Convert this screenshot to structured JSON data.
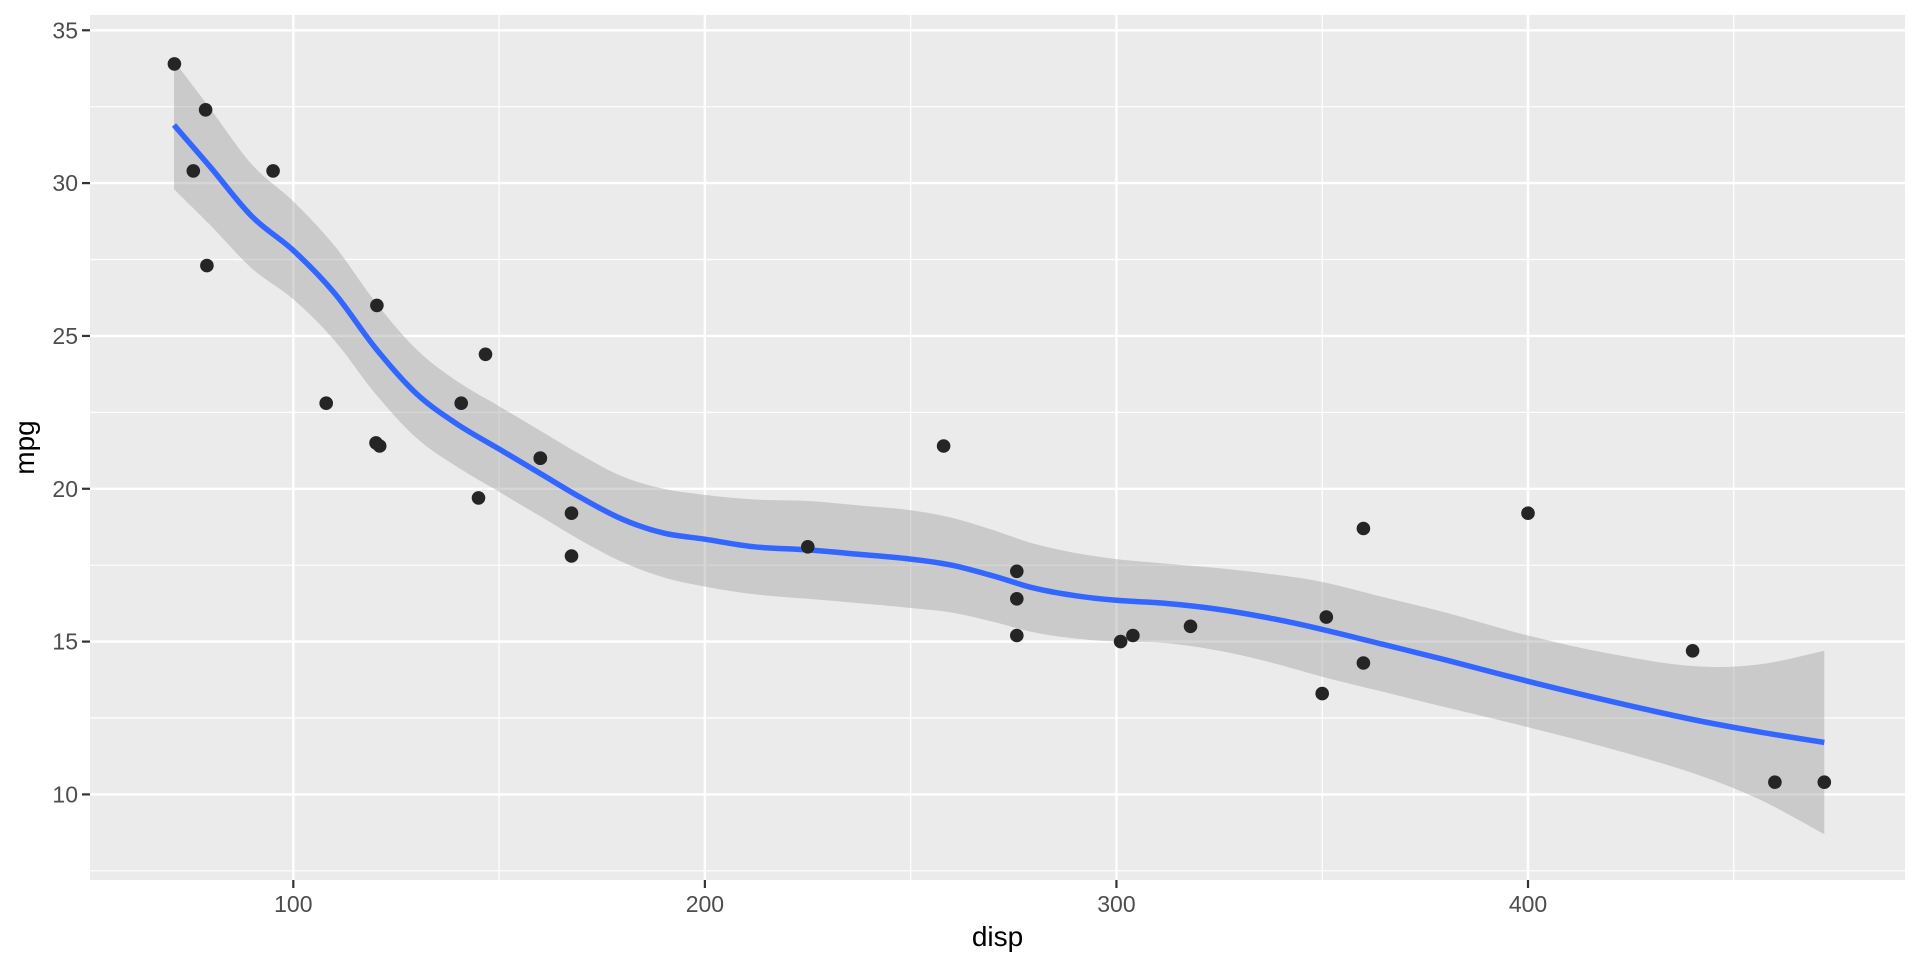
{
  "chart_data": {
    "type": "scatter",
    "title": "",
    "xlabel": "disp",
    "ylabel": "mpg",
    "x_ticks": [
      100,
      200,
      300,
      400
    ],
    "y_ticks": [
      10,
      15,
      20,
      25,
      30,
      35
    ],
    "x_minor_ticks": [
      150,
      250,
      350,
      450
    ],
    "y_minor_ticks": [
      7.5,
      12.5,
      17.5,
      22.5,
      27.5,
      32.5
    ],
    "xlim": [
      50.6,
      491.6
    ],
    "ylim": [
      7.2,
      35.5
    ],
    "grid": true,
    "legend": false,
    "points": [
      [
        160,
        21.0
      ],
      [
        160,
        21.0
      ],
      [
        108,
        22.8
      ],
      [
        258,
        21.4
      ],
      [
        360,
        18.7
      ],
      [
        225,
        18.1
      ],
      [
        360,
        14.3
      ],
      [
        146.7,
        24.4
      ],
      [
        140.8,
        22.8
      ],
      [
        167.6,
        19.2
      ],
      [
        167.6,
        17.8
      ],
      [
        275.8,
        16.4
      ],
      [
        275.8,
        17.3
      ],
      [
        275.8,
        15.2
      ],
      [
        472,
        10.4
      ],
      [
        460,
        10.4
      ],
      [
        440,
        14.7
      ],
      [
        78.7,
        32.4
      ],
      [
        75.7,
        30.4
      ],
      [
        71.1,
        33.9
      ],
      [
        120.1,
        21.5
      ],
      [
        318,
        15.5
      ],
      [
        304,
        15.2
      ],
      [
        350,
        13.3
      ],
      [
        400,
        19.2
      ],
      [
        79,
        27.3
      ],
      [
        120.3,
        26.0
      ],
      [
        95.1,
        30.4
      ],
      [
        351,
        15.8
      ],
      [
        145,
        19.7
      ],
      [
        301,
        15.0
      ],
      [
        121,
        21.4
      ]
    ],
    "smooth_line": [
      [
        71,
        31.9
      ],
      [
        80,
        30.5
      ],
      [
        90,
        28.9
      ],
      [
        100,
        27.8
      ],
      [
        110,
        26.4
      ],
      [
        120,
        24.6
      ],
      [
        130,
        23.1
      ],
      [
        140,
        22.1
      ],
      [
        150,
        21.3
      ],
      [
        160,
        20.5
      ],
      [
        170,
        19.7
      ],
      [
        180,
        19.0
      ],
      [
        190,
        18.55
      ],
      [
        200,
        18.35
      ],
      [
        212,
        18.1
      ],
      [
        225,
        18.0
      ],
      [
        238,
        17.85
      ],
      [
        250,
        17.7
      ],
      [
        260,
        17.5
      ],
      [
        270,
        17.15
      ],
      [
        280,
        16.75
      ],
      [
        290,
        16.5
      ],
      [
        300,
        16.35
      ],
      [
        312,
        16.25
      ],
      [
        325,
        16.05
      ],
      [
        338,
        15.75
      ],
      [
        350,
        15.4
      ],
      [
        365,
        14.9
      ],
      [
        380,
        14.4
      ],
      [
        400,
        13.7
      ],
      [
        420,
        13.05
      ],
      [
        440,
        12.45
      ],
      [
        456,
        12.05
      ],
      [
        472,
        11.7
      ]
    ],
    "confidence_band": [
      [
        71,
        29.8,
        34.0
      ],
      [
        80,
        28.6,
        32.4
      ],
      [
        90,
        27.2,
        30.6
      ],
      [
        100,
        26.2,
        29.4
      ],
      [
        110,
        24.85,
        27.95
      ],
      [
        120,
        23.1,
        26.1
      ],
      [
        130,
        21.65,
        24.55
      ],
      [
        140,
        20.7,
        23.5
      ],
      [
        150,
        19.9,
        22.7
      ],
      [
        160,
        19.1,
        21.9
      ],
      [
        170,
        18.3,
        21.1
      ],
      [
        180,
        17.6,
        20.4
      ],
      [
        190,
        17.1,
        20.0
      ],
      [
        200,
        16.8,
        19.8
      ],
      [
        212,
        16.55,
        19.65
      ],
      [
        225,
        16.4,
        19.6
      ],
      [
        238,
        16.25,
        19.45
      ],
      [
        250,
        16.1,
        19.3
      ],
      [
        260,
        15.95,
        19.05
      ],
      [
        270,
        15.65,
        18.65
      ],
      [
        280,
        15.3,
        18.2
      ],
      [
        290,
        15.1,
        17.9
      ],
      [
        300,
        15.0,
        17.7
      ],
      [
        312,
        14.95,
        17.55
      ],
      [
        325,
        14.7,
        17.4
      ],
      [
        338,
        14.3,
        17.2
      ],
      [
        350,
        13.85,
        16.95
      ],
      [
        365,
        13.35,
        16.45
      ],
      [
        380,
        12.85,
        15.95
      ],
      [
        400,
        12.2,
        15.2
      ],
      [
        420,
        11.5,
        14.6
      ],
      [
        440,
        10.7,
        14.2
      ],
      [
        456,
        9.85,
        14.25
      ],
      [
        472,
        8.7,
        14.7
      ]
    ]
  },
  "colors": {
    "background": "#FFFFFF",
    "panel": "#EBEBEB",
    "grid": "#FFFFFF",
    "ribbon": "#999999",
    "ribbon_opacity": 0.4,
    "smooth_line": "#3366FF",
    "point": "#252525",
    "tick_label": "#4D4D4D",
    "tick_mark": "#333333",
    "axis_title": "#000000"
  },
  "x_tick_labels": [
    "100",
    "200",
    "300",
    "400"
  ],
  "y_tick_labels": [
    "10",
    "15",
    "20",
    "25",
    "30",
    "35"
  ]
}
